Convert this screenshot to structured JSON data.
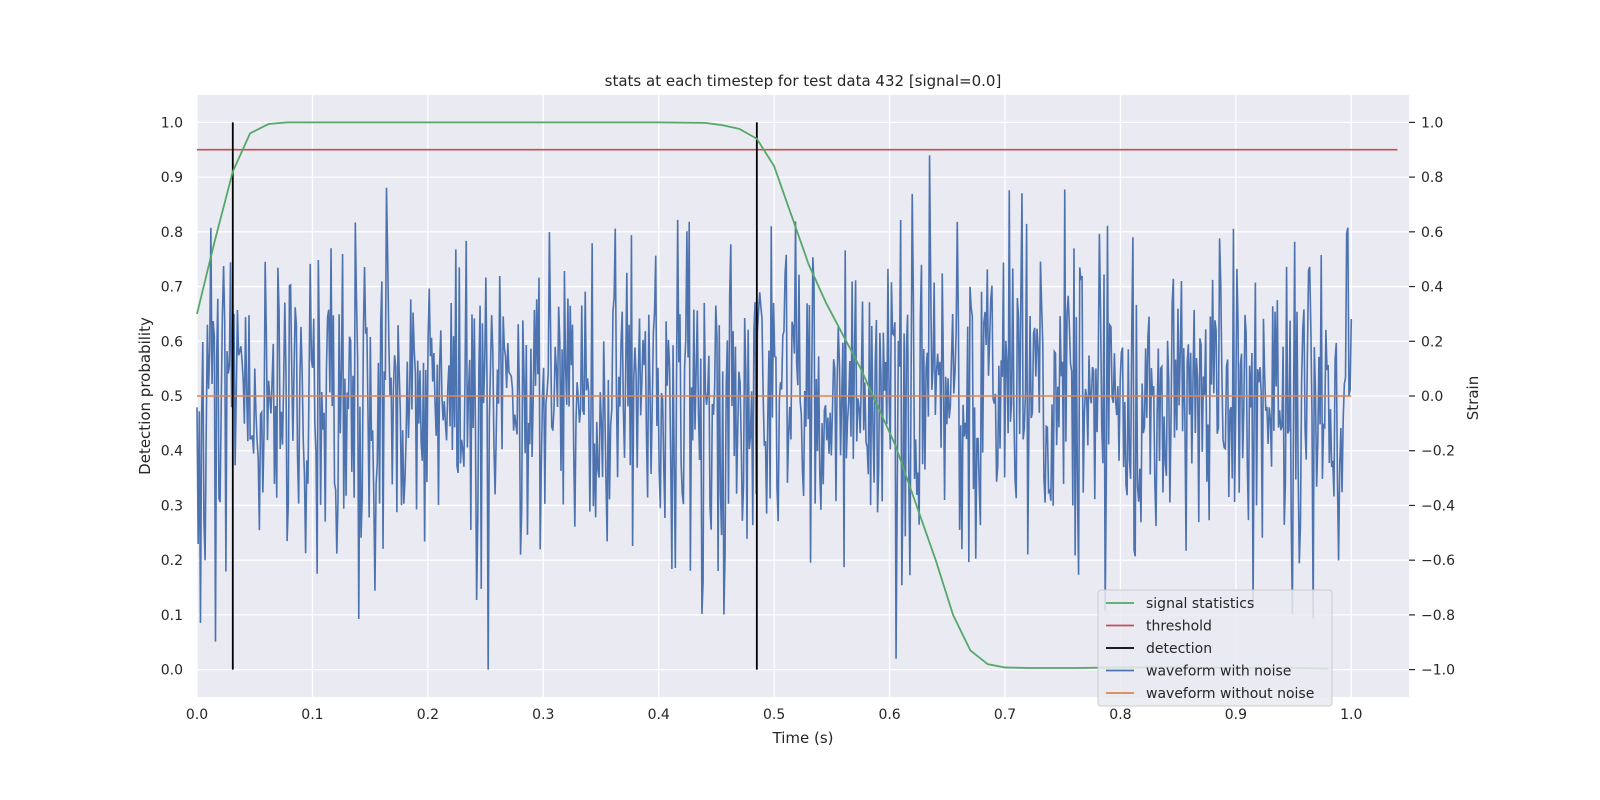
{
  "chart_data": {
    "type": "line",
    "title": "stats at each timestep for test data 432 [signal=0.0]",
    "xlabel": "Time (s)",
    "ylabel": "Detection probability",
    "ylabel_right": "Strain",
    "xlim": [
      0.0,
      1.05
    ],
    "ylim": [
      -0.05,
      1.05
    ],
    "ylim_right": [
      -1.1,
      1.1
    ],
    "x_ticks": [
      "0.0",
      "0.1",
      "0.2",
      "0.3",
      "0.4",
      "0.5",
      "0.6",
      "0.7",
      "0.8",
      "0.9",
      "1.0"
    ],
    "y_ticks": [
      "0.0",
      "0.1",
      "0.2",
      "0.3",
      "0.4",
      "0.5",
      "0.6",
      "0.7",
      "0.8",
      "0.9",
      "1.0"
    ],
    "y_ticks_right": [
      "−1.0",
      "−0.8",
      "−0.6",
      "−0.4",
      "−0.2",
      "0.0",
      "0.2",
      "0.4",
      "0.6",
      "0.8",
      "1.0"
    ],
    "grid": true,
    "legend_position": "lower-right",
    "series": [
      {
        "name": "signal statistics",
        "color": "#55a868",
        "x": [
          0.0,
          0.015,
          0.031,
          0.046,
          0.062,
          0.078,
          0.1,
          0.2,
          0.3,
          0.4,
          0.44,
          0.455,
          0.47,
          0.485,
          0.5,
          0.515,
          0.53,
          0.545,
          0.56,
          0.575,
          0.59,
          0.605,
          0.62,
          0.64,
          0.655,
          0.67,
          0.685,
          0.7,
          0.72,
          0.76,
          0.8,
          0.85,
          0.9,
          0.95,
          0.98
        ],
        "y": [
          0.65,
          0.78,
          0.91,
          0.98,
          0.997,
          1.0,
          1.0,
          1.0,
          1.0,
          1.0,
          0.999,
          0.995,
          0.988,
          0.97,
          0.92,
          0.83,
          0.74,
          0.67,
          0.61,
          0.55,
          0.48,
          0.41,
          0.32,
          0.2,
          0.1,
          0.035,
          0.01,
          0.004,
          0.003,
          0.003,
          0.004,
          0.004,
          0.003,
          0.003,
          0.002
        ]
      },
      {
        "name": "threshold",
        "color": "#c44e52",
        "x": [
          0.0,
          1.04
        ],
        "y": [
          0.95,
          0.95
        ]
      },
      {
        "name": "detection",
        "color": "#000000",
        "x": [
          0.031,
          0.485
        ],
        "y": [
          0.0,
          1.0
        ]
      },
      {
        "name": "waveform with noise",
        "color": "#4c72b0",
        "axis": "right",
        "x_range": [
          0.0,
          1.0
        ],
        "samples": 1000,
        "amplitude_range": [
          -1.0,
          1.0
        ]
      },
      {
        "name": "waveform without noise",
        "color": "#dd8452",
        "axis": "right",
        "x": [
          0.0,
          1.0
        ],
        "y": [
          0.0,
          0.0
        ]
      }
    ]
  }
}
